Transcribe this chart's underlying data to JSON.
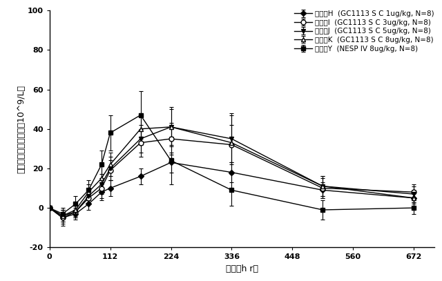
{
  "title": "",
  "xlabel": "時間（h r）",
  "ylabel": "網状赤血球平均変化（10^9/L）",
  "xlim": [
    0,
    710
  ],
  "ylim": [
    -20,
    100
  ],
  "xticks": [
    0,
    112,
    224,
    336,
    448,
    560,
    672
  ],
  "yticks": [
    -20,
    0,
    20,
    40,
    60,
    80,
    100
  ],
  "series": [
    {
      "label": "グルーH  (GC1113 S C 1ug/kg, N=8)",
      "x": [
        0,
        24,
        48,
        72,
        96,
        112,
        168,
        224,
        336,
        504,
        672
      ],
      "y": [
        0,
        -5,
        -3,
        2,
        8,
        10,
        16,
        23,
        18,
        9,
        5
      ],
      "yerr": [
        0,
        3,
        3,
        3,
        4,
        4,
        4,
        5,
        5,
        4,
        3
      ],
      "marker": "D",
      "fillstyle": "full",
      "color": "#000000",
      "linestyle": "-",
      "markersize": 4
    },
    {
      "label": "グルーI  (GC1113 S C 3ug/kg, N=8)",
      "x": [
        0,
        24,
        48,
        72,
        96,
        112,
        168,
        224,
        336,
        504,
        672
      ],
      "y": [
        0,
        -5,
        -2,
        5,
        10,
        19,
        33,
        35,
        32,
        10,
        8
      ],
      "yerr": [
        0,
        4,
        3,
        3,
        5,
        5,
        7,
        8,
        10,
        5,
        4
      ],
      "marker": "o",
      "fillstyle": "none",
      "color": "#000000",
      "linestyle": "-",
      "markersize": 5
    },
    {
      "label": "グルーJ  (GC1113 S C 5ug/kg, N=8)",
      "x": [
        0,
        24,
        48,
        72,
        96,
        112,
        168,
        224,
        336,
        504,
        672
      ],
      "y": [
        0,
        -4,
        -2,
        6,
        12,
        20,
        35,
        41,
        35,
        11,
        7
      ],
      "yerr": [
        0,
        3,
        3,
        4,
        5,
        6,
        7,
        9,
        12,
        5,
        4
      ],
      "marker": "v",
      "fillstyle": "full",
      "color": "#000000",
      "linestyle": "-",
      "markersize": 5
    },
    {
      "label": "グルーK  (GC1113 S C 8ug/kg, N=8)",
      "x": [
        0,
        24,
        48,
        72,
        96,
        112,
        168,
        224,
        336,
        504,
        672
      ],
      "y": [
        0,
        -4,
        -1,
        8,
        15,
        22,
        40,
        41,
        33,
        11,
        5
      ],
      "yerr": [
        0,
        3,
        3,
        4,
        6,
        6,
        8,
        10,
        15,
        5,
        4
      ],
      "marker": "^",
      "fillstyle": "none",
      "color": "#000000",
      "linestyle": "-",
      "markersize": 5
    },
    {
      "label": "グルーY  (NESP IV 8ug/kg, N=8)",
      "x": [
        0,
        24,
        48,
        72,
        96,
        112,
        168,
        224,
        336,
        504,
        672
      ],
      "y": [
        0,
        -3,
        2,
        9,
        22,
        38,
        47,
        24,
        9,
        -1,
        0
      ],
      "yerr": [
        0,
        3,
        4,
        5,
        7,
        9,
        12,
        12,
        8,
        5,
        3
      ],
      "marker": "s",
      "fillstyle": "full",
      "color": "#000000",
      "linestyle": "-",
      "markersize": 4
    }
  ],
  "background_color": "#ffffff",
  "plot_bg_color": "#ffffff",
  "legend_fontsize": 7.5,
  "axis_fontsize": 9,
  "tick_fontsize": 8
}
